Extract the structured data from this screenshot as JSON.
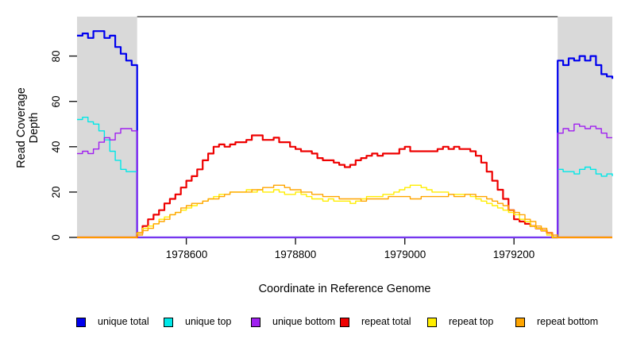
{
  "chart_data": {
    "type": "line",
    "title": "",
    "xlabel": "Coordinate in Reference Genome",
    "ylabel": "Read Coverage Depth",
    "xlim": [
      1978400,
      1979380
    ],
    "ylim": [
      0,
      97
    ],
    "x_ticks": [
      1978600,
      1978800,
      1979000,
      1979200
    ],
    "y_ticks": [
      0,
      20,
      40,
      60,
      80
    ],
    "grid": false,
    "legend_position": "bottom",
    "plot_border_color": "#4d4d4d",
    "tick_color": "#1a1a1a",
    "shaded_regions": [
      {
        "name": "left-flank-unique-region",
        "x0": 1978400,
        "x1": 1978510,
        "color": "#d9d9d9"
      },
      {
        "name": "right-flank-unique-region",
        "x0": 1979280,
        "x1": 1979380,
        "color": "#d9d9d9"
      }
    ],
    "x_start": 1978400,
    "x_step": 10,
    "series": [
      {
        "name": "unique total",
        "color": "#0000EE",
        "width": 2.2,
        "values": [
          89,
          90,
          88,
          91,
          91,
          88,
          89,
          84,
          81,
          78,
          76,
          0,
          0,
          0,
          0,
          0,
          0,
          0,
          0,
          0,
          0,
          0,
          0,
          0,
          0,
          0,
          0,
          0,
          0,
          0,
          0,
          0,
          0,
          0,
          0,
          0,
          0,
          0,
          0,
          0,
          0,
          0,
          0,
          0,
          0,
          0,
          0,
          0,
          0,
          0,
          0,
          0,
          0,
          0,
          0,
          0,
          0,
          0,
          0,
          0,
          0,
          0,
          0,
          0,
          0,
          0,
          0,
          0,
          0,
          0,
          0,
          0,
          0,
          0,
          0,
          0,
          0,
          0,
          0,
          0,
          0,
          0,
          0,
          0,
          0,
          0,
          0,
          0,
          78,
          76,
          79,
          78,
          80,
          78,
          80,
          76,
          72,
          71,
          70
        ]
      },
      {
        "name": "unique top",
        "color": "#00E8E8",
        "width": 1.4,
        "values": [
          52,
          53,
          51,
          50,
          47,
          43,
          38,
          34,
          30,
          29,
          29,
          0,
          0,
          0,
          0,
          0,
          0,
          0,
          0,
          0,
          0,
          0,
          0,
          0,
          0,
          0,
          0,
          0,
          0,
          0,
          0,
          0,
          0,
          0,
          0,
          0,
          0,
          0,
          0,
          0,
          0,
          0,
          0,
          0,
          0,
          0,
          0,
          0,
          0,
          0,
          0,
          0,
          0,
          0,
          0,
          0,
          0,
          0,
          0,
          0,
          0,
          0,
          0,
          0,
          0,
          0,
          0,
          0,
          0,
          0,
          0,
          0,
          0,
          0,
          0,
          0,
          0,
          0,
          0,
          0,
          0,
          0,
          0,
          0,
          0,
          0,
          0,
          0,
          30,
          29,
          29,
          28,
          30,
          31,
          30,
          28,
          27,
          28,
          27
        ]
      },
      {
        "name": "unique bottom",
        "color": "#A020F0",
        "width": 1.4,
        "values": [
          37,
          38,
          37,
          39,
          42,
          44,
          43,
          46,
          48,
          48,
          47,
          0,
          0,
          0,
          0,
          0,
          0,
          0,
          0,
          0,
          0,
          0,
          0,
          0,
          0,
          0,
          0,
          0,
          0,
          0,
          0,
          0,
          0,
          0,
          0,
          0,
          0,
          0,
          0,
          0,
          0,
          0,
          0,
          0,
          0,
          0,
          0,
          0,
          0,
          0,
          0,
          0,
          0,
          0,
          0,
          0,
          0,
          0,
          0,
          0,
          0,
          0,
          0,
          0,
          0,
          0,
          0,
          0,
          0,
          0,
          0,
          0,
          0,
          0,
          0,
          0,
          0,
          0,
          0,
          0,
          0,
          0,
          0,
          0,
          0,
          0,
          0,
          0,
          46,
          48,
          47,
          50,
          49,
          48,
          49,
          48,
          46,
          44,
          44
        ]
      },
      {
        "name": "repeat total",
        "color": "#EE0000",
        "width": 2.2,
        "values": [
          0,
          0,
          0,
          0,
          0,
          0,
          0,
          0,
          0,
          0,
          0,
          2,
          5,
          8,
          10,
          12,
          15,
          17,
          19,
          22,
          25,
          27,
          30,
          34,
          37,
          40,
          41,
          40,
          41,
          42,
          42,
          43,
          45,
          45,
          43,
          43,
          44,
          42,
          42,
          40,
          39,
          38,
          38,
          37,
          35,
          34,
          34,
          33,
          32,
          31,
          32,
          34,
          35,
          36,
          37,
          36,
          37,
          37,
          37,
          39,
          40,
          38,
          38,
          38,
          38,
          38,
          39,
          40,
          39,
          40,
          39,
          39,
          38,
          36,
          33,
          29,
          25,
          21,
          17,
          12,
          8,
          7,
          6,
          5,
          4,
          3,
          2,
          0,
          0,
          0,
          0,
          0,
          0,
          0,
          0,
          0,
          0,
          0,
          0
        ]
      },
      {
        "name": "repeat top",
        "color": "#FFEE00",
        "width": 1.4,
        "values": [
          0,
          0,
          0,
          0,
          0,
          0,
          0,
          0,
          0,
          0,
          0,
          2,
          4,
          5,
          6,
          8,
          9,
          10,
          11,
          12,
          13,
          14,
          15,
          16,
          17,
          18,
          19,
          19,
          20,
          20,
          20,
          21,
          20,
          21,
          20,
          20,
          21,
          20,
          19,
          19,
          20,
          19,
          18,
          17,
          17,
          16,
          17,
          16,
          16,
          16,
          15,
          16,
          17,
          18,
          18,
          18,
          19,
          19,
          20,
          21,
          22,
          23,
          23,
          22,
          21,
          20,
          20,
          20,
          19,
          19,
          19,
          19,
          18,
          17,
          16,
          15,
          14,
          13,
          12,
          11,
          10,
          8,
          7,
          5,
          4,
          3,
          1,
          0,
          0,
          0,
          0,
          0,
          0,
          0,
          0,
          0,
          0,
          0,
          0
        ]
      },
      {
        "name": "repeat bottom",
        "color": "#FFA500",
        "width": 1.4,
        "values": [
          0,
          0,
          0,
          0,
          0,
          0,
          0,
          0,
          0,
          0,
          0,
          1,
          3,
          4,
          6,
          7,
          8,
          10,
          11,
          13,
          14,
          15,
          15,
          16,
          17,
          17,
          18,
          19,
          20,
          20,
          20,
          20,
          21,
          21,
          22,
          22,
          23,
          23,
          22,
          21,
          21,
          20,
          20,
          19,
          19,
          18,
          18,
          18,
          17,
          17,
          17,
          17,
          16,
          17,
          17,
          17,
          17,
          18,
          18,
          18,
          18,
          17,
          17,
          18,
          18,
          18,
          18,
          18,
          19,
          18,
          18,
          19,
          19,
          18,
          18,
          17,
          16,
          15,
          14,
          12,
          11,
          10,
          8,
          7,
          5,
          4,
          2,
          1,
          0,
          0,
          0,
          0,
          0,
          0,
          0,
          0,
          0,
          0,
          0
        ]
      }
    ]
  },
  "legend": {
    "items": [
      {
        "label": "unique total",
        "color": "#0000EE"
      },
      {
        "label": "unique top",
        "color": "#00E8E8"
      },
      {
        "label": "unique bottom",
        "color": "#A020F0"
      },
      {
        "label": "repeat total",
        "color": "#EE0000"
      },
      {
        "label": "repeat top",
        "color": "#FFEE00"
      },
      {
        "label": "repeat bottom",
        "color": "#FFA500"
      }
    ]
  }
}
